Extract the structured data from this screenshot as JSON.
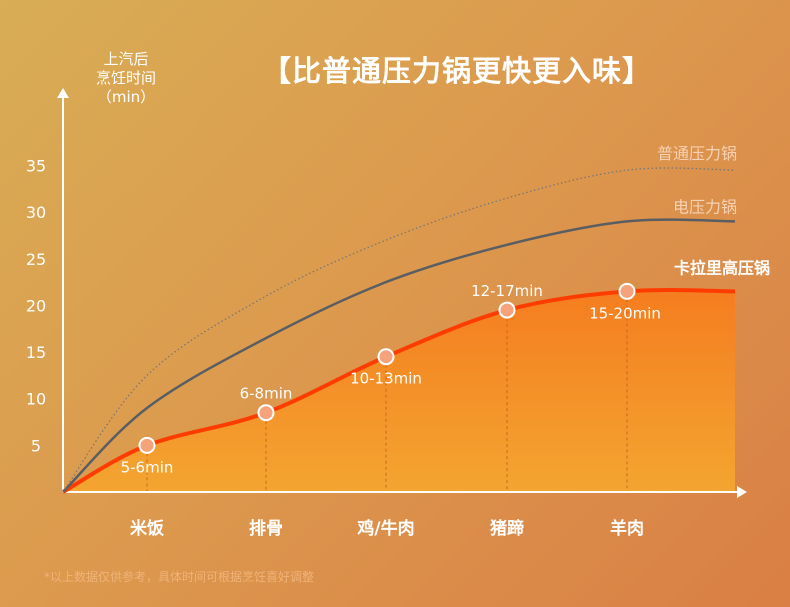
{
  "title": "【比普通压力锅更快更入味】",
  "y_axis_label": [
    "上汽后",
    "烹饪时间",
    "（min）"
  ],
  "footnote": "*以上数据仅供参考，具体时间可根据烹饪喜好调整",
  "colors": {
    "highlight_line": "#ff3c00",
    "area_top": "#f57d1f",
    "area_bottom": "#f3a531",
    "electric_line": "#5a5e62",
    "normal_line": "#7c7672",
    "marker_fill": "#f6a27a",
    "label_main": "#ffffff",
    "label_muted": "#f6d2b4"
  },
  "chart_data": {
    "type": "line",
    "title": "【比普通压力锅更快更入味】",
    "ylabel": "上汽后 烹饪时间 （min）",
    "xlabel": "",
    "ylim": [
      0,
      40
    ],
    "yticks": [
      5,
      10,
      15,
      20,
      25,
      30,
      35
    ],
    "categories": [
      "米饭",
      "排骨",
      "鸡/牛肉",
      "猪蹄",
      "羊肉"
    ],
    "series": [
      {
        "name": "卡拉里高压锅",
        "style": "filled-area",
        "values": [
          5,
          8.5,
          14.5,
          19.5,
          21.5
        ],
        "point_labels": [
          "5-6min",
          "6-8min",
          "10-13min",
          "12-17min",
          "15-20min"
        ]
      },
      {
        "name": "电压力锅",
        "style": "solid",
        "values": [
          9,
          16.5,
          22.5,
          26.5,
          29
        ]
      },
      {
        "name": "普通压力锅",
        "style": "dotted",
        "values": [
          12.5,
          21,
          27,
          31.5,
          34.5
        ]
      }
    ],
    "grid": false,
    "legend": "series names printed at the right end of each line"
  }
}
